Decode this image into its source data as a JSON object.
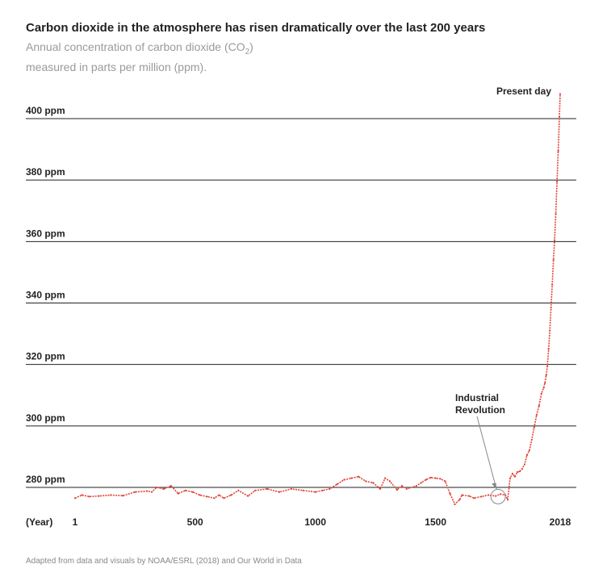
{
  "header": {
    "title": "Carbon dioxide in the atmosphere has risen dramatically over the last 200 years",
    "subtitle_line1_before": "Annual concentration of carbon dioxide (CO",
    "subtitle_sub": "2",
    "subtitle_line1_after": ")",
    "subtitle_line2": "measured in parts per million (ppm)."
  },
  "footer": {
    "source": "Adapted from data and visuals by NOAA/ESRL (2018) and Our World in Data"
  },
  "chart_data": {
    "type": "line",
    "xlabel": "(Year)",
    "ylabel": "",
    "xlim": [
      1,
      2018
    ],
    "ylim": [
      272,
      408
    ],
    "x_ticks": [
      1,
      500,
      1000,
      1500,
      2018
    ],
    "y_ticks": [
      280,
      300,
      320,
      340,
      360,
      380,
      400
    ],
    "y_tick_labels": [
      "280 ppm",
      "300 ppm",
      "320 ppm",
      "340 ppm",
      "360 ppm",
      "380 ppm",
      "400 ppm"
    ],
    "grid": "horizontal",
    "line_color": "#e0463a",
    "annotations": [
      {
        "text": [
          "Industrial",
          "Revolution"
        ],
        "x": 1760,
        "y": 277
      },
      {
        "text": [
          "Present day"
        ],
        "x": 2018,
        "y": 408
      }
    ],
    "x": [
      1,
      30,
      60,
      100,
      150,
      200,
      250,
      300,
      320,
      340,
      370,
      400,
      430,
      460,
      490,
      520,
      550,
      580,
      600,
      620,
      650,
      680,
      720,
      750,
      800,
      850,
      900,
      950,
      1000,
      1030,
      1060,
      1090,
      1120,
      1150,
      1180,
      1210,
      1240,
      1270,
      1290,
      1310,
      1340,
      1360,
      1380,
      1420,
      1440,
      1460,
      1480,
      1500,
      1520,
      1540,
      1560,
      1580,
      1600,
      1610,
      1640,
      1660,
      1690,
      1720,
      1750,
      1770,
      1790,
      1800,
      1810,
      1820,
      1830,
      1840,
      1850,
      1860,
      1870,
      1880,
      1890,
      1900,
      1910,
      1920,
      1930,
      1940,
      1950,
      1955,
      1960,
      1965,
      1970,
      1975,
      1980,
      1985,
      1990,
      1995,
      2000,
      2005,
      2010,
      2015,
      2018
    ],
    "y": [
      276.5,
      277.5,
      277,
      277.2,
      277.5,
      277.3,
      278.5,
      278.8,
      278.5,
      280,
      279.5,
      280.5,
      278,
      279,
      278.5,
      277.5,
      277,
      276.5,
      277.5,
      276.5,
      277.5,
      279,
      277.2,
      279,
      279.5,
      278.5,
      279.5,
      279,
      278.5,
      279,
      279.5,
      281,
      282.5,
      283,
      283.5,
      282,
      281.5,
      279.5,
      283,
      282,
      279.2,
      280.5,
      279.5,
      280.5,
      281.5,
      282.5,
      283.2,
      283,
      282.8,
      282,
      278,
      274.5,
      276,
      277.5,
      277.2,
      276.5,
      277,
      277.5,
      277.2,
      277.8,
      277.5,
      276,
      283,
      284.5,
      283.5,
      285,
      285.2,
      286,
      287.5,
      290.5,
      292,
      295.5,
      299.5,
      303.5,
      306.5,
      310.5,
      312.5,
      314,
      316.5,
      319.5,
      325,
      331,
      338.5,
      346,
      354,
      360.5,
      369,
      379.5,
      389.5,
      400.5,
      408
    ]
  }
}
